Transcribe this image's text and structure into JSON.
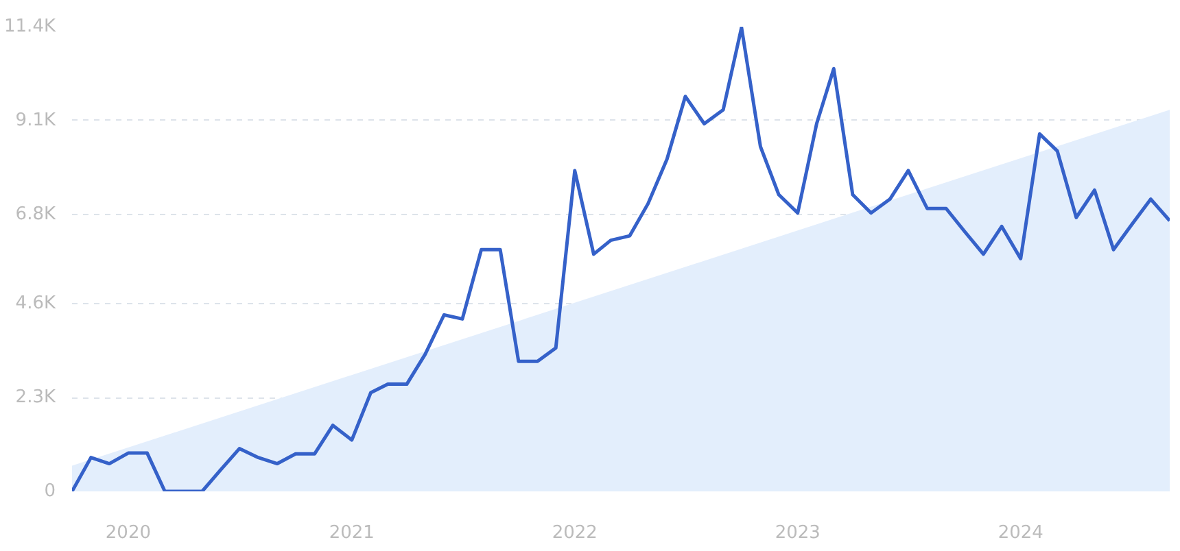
{
  "chart_data": {
    "type": "line",
    "x": [
      "2019-10",
      "2019-11",
      "2019-12",
      "2020-01",
      "2020-02",
      "2020-03",
      "2020-04",
      "2020-05",
      "2020-06",
      "2020-07",
      "2020-08",
      "2020-09",
      "2020-10",
      "2020-11",
      "2020-12",
      "2021-01",
      "2021-02",
      "2021-03",
      "2021-04",
      "2021-05",
      "2021-06",
      "2021-07",
      "2021-08",
      "2021-09",
      "2021-10",
      "2021-11",
      "2021-12",
      "2022-01",
      "2022-02",
      "2022-03",
      "2022-04",
      "2022-05",
      "2022-06",
      "2022-07",
      "2022-08",
      "2022-09",
      "2022-10",
      "2022-11",
      "2022-12",
      "2023-01",
      "2023-02",
      "2023-03",
      "2023-04",
      "2023-05",
      "2023-06",
      "2023-07",
      "2023-08",
      "2023-09",
      "2023-10",
      "2023-11",
      "2023-12",
      "2024-01",
      "2024-02",
      "2024-03",
      "2024-04",
      "2024-05",
      "2024-06",
      "2024-07",
      "2024-08",
      "2024-09"
    ],
    "series": [
      {
        "type": "area",
        "color": "#e3eefc",
        "x": [
          "2019-10",
          "2024-09"
        ],
        "values": [
          630,
          9360
        ]
      },
      {
        "color": "#3561c9",
        "values": [
          0,
          830,
          680,
          940,
          940,
          0,
          0,
          0,
          540,
          1050,
          830,
          680,
          920,
          920,
          1620,
          1260,
          2420,
          2630,
          2630,
          3360,
          4330,
          4230,
          5930,
          5930,
          3190,
          3190,
          3520,
          7870,
          5820,
          6160,
          6270,
          7060,
          8150,
          9690,
          9020,
          9360,
          11380,
          8460,
          7280,
          6830,
          9020,
          10370,
          7280,
          6830,
          7170,
          7870,
          6940,
          6940,
          6380,
          5820,
          6500,
          5710,
          8770,
          8350,
          6720,
          7390,
          5930,
          6550,
          7170,
          6640
        ]
      }
    ],
    "xlim": [
      "2019-10",
      "2024-09"
    ],
    "xticks": [
      "2020",
      "2021",
      "2022",
      "2023",
      "2024"
    ],
    "ylim": [
      0,
      11400
    ],
    "yticks": [
      0,
      {
        "value": 2300,
        "label": "2.3K"
      },
      {
        "value": 4600,
        "label": "4.6K"
      },
      {
        "value": 6800,
        "label": "6.8K"
      },
      {
        "value": 9100,
        "label": "9.1K"
      },
      {
        "value": 11400,
        "label": "11.4K"
      }
    ],
    "grid": "y",
    "line_style": "solid"
  }
}
